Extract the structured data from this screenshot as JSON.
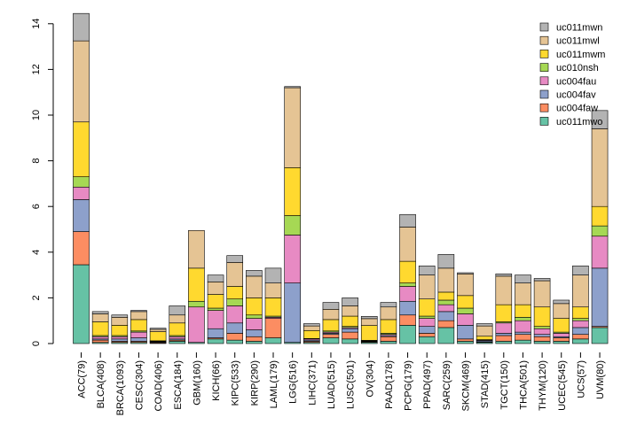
{
  "chart_data": {
    "type": "bar",
    "stacked": true,
    "title": "",
    "xlabel": "",
    "ylabel": "",
    "ylim": [
      0,
      14
    ],
    "yticks": [
      0,
      2,
      4,
      6,
      8,
      10,
      12,
      14
    ],
    "grid": false,
    "legend_position": "top-right",
    "categories": [
      "ACC(79)",
      "BLCA(408)",
      "BRCA(1093)",
      "CESC(304)",
      "COAD(406)",
      "ESCA(184)",
      "GBM(160)",
      "KICH(66)",
      "KIPC(533)",
      "KIRP(290)",
      "LAML(179)",
      "LGG(516)",
      "LIHC(371)",
      "LUAD(515)",
      "LUSC(501)",
      "OV(304)",
      "PAAD(178)",
      "PCPG(179)",
      "PPAD(497)",
      "SARC(259)",
      "SKCM(469)",
      "STAD(415)",
      "TGCT(150)",
      "THCA(501)",
      "THYM(120)",
      "UCEC(545)",
      "UCS(57)",
      "UVM(80)"
    ],
    "series": [
      {
        "name": "uc011mwo",
        "color": "#66c2a5",
        "values": [
          3.45,
          0.05,
          0.05,
          0.05,
          0.02,
          0.1,
          0.05,
          0.2,
          0.15,
          0.1,
          0.25,
          0.05,
          0.05,
          0.25,
          0.2,
          0.05,
          0.1,
          0.8,
          0.3,
          0.7,
          0.1,
          0.05,
          0.1,
          0.15,
          0.1,
          0.1,
          0.2,
          0.7
        ]
      },
      {
        "name": "uc004faw",
        "color": "#fc8d62",
        "values": [
          1.45,
          0.1,
          0.05,
          0.05,
          0.03,
          0.05,
          0.0,
          0.05,
          0.3,
          0.2,
          0.85,
          0.0,
          0.05,
          0.15,
          0.3,
          0.03,
          0.2,
          0.45,
          0.15,
          0.3,
          0.1,
          0.02,
          0.25,
          0.25,
          0.2,
          0.15,
          0.2,
          0.05
        ]
      },
      {
        "name": "uc004fav",
        "color": "#8da0cb",
        "values": [
          1.4,
          0.05,
          0.1,
          0.15,
          0.03,
          0.05,
          0.0,
          0.4,
          0.45,
          0.3,
          0.0,
          2.6,
          0.05,
          0.05,
          0.15,
          0.02,
          0.05,
          0.6,
          0.3,
          0.4,
          0.6,
          0.05,
          0.1,
          0.1,
          0.1,
          0.05,
          0.3,
          2.55
        ]
      },
      {
        "name": "uc004fau",
        "color": "#e78ac3",
        "values": [
          0.55,
          0.1,
          0.1,
          0.25,
          0.02,
          0.1,
          1.55,
          0.8,
          0.75,
          0.5,
          0.05,
          2.1,
          0.05,
          0.05,
          0.05,
          0.02,
          0.05,
          0.65,
          0.35,
          0.3,
          0.5,
          0.03,
          0.45,
          0.5,
          0.25,
          0.15,
          0.3,
          1.4
        ]
      },
      {
        "name": "uc010nsh",
        "color": "#a6d854",
        "values": [
          0.45,
          0.05,
          0.05,
          0.05,
          0.02,
          0.05,
          0.25,
          0.1,
          0.3,
          0.15,
          0.05,
          0.85,
          0.02,
          0.05,
          0.05,
          0.02,
          0.05,
          0.15,
          0.1,
          0.2,
          0.25,
          0.02,
          0.05,
          0.15,
          0.1,
          0.05,
          0.1,
          0.45
        ]
      },
      {
        "name": "uc011mwm",
        "color": "#ffd92f",
        "values": [
          2.4,
          0.6,
          0.45,
          0.5,
          0.4,
          0.55,
          1.45,
          0.6,
          0.55,
          0.75,
          0.8,
          2.1,
          0.35,
          0.5,
          0.45,
          0.65,
          0.6,
          0.95,
          0.75,
          0.35,
          0.55,
          0.15,
          0.75,
          0.55,
          0.85,
          0.6,
          0.5,
          0.85
        ]
      },
      {
        "name": "uc011mwl",
        "color": "#e5c494",
        "values": [
          3.55,
          0.35,
          0.35,
          0.35,
          0.1,
          0.35,
          1.65,
          0.55,
          1.05,
          0.95,
          0.65,
          3.5,
          0.2,
          0.45,
          0.45,
          0.3,
          0.55,
          1.5,
          1.05,
          1.05,
          0.95,
          0.45,
          1.25,
          0.95,
          1.15,
          0.65,
          1.4,
          3.4
        ]
      },
      {
        "name": "uc011mwn",
        "color": "#b3b3b3",
        "values": [
          1.2,
          0.1,
          0.1,
          0.05,
          0.05,
          0.4,
          0.0,
          0.3,
          0.3,
          0.25,
          0.65,
          0.05,
          0.1,
          0.3,
          0.35,
          0.1,
          0.2,
          0.55,
          0.4,
          0.6,
          0.05,
          0.1,
          0.1,
          0.35,
          0.1,
          0.15,
          0.4,
          0.8
        ]
      }
    ]
  }
}
